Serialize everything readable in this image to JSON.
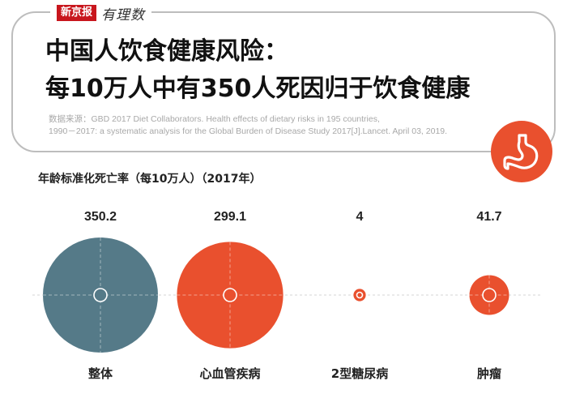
{
  "header": {
    "logo_box": "新京报",
    "logo_script": "有理数",
    "title_line1": "中国人饮食健康风险：",
    "title_line2": "每10万人中有350人死因归于饮食健康",
    "source_line1": "数据来源：GBD 2017 Diet Collaborators. Health effects of dietary risks in 195 countries,",
    "source_line2": "1990－2017: a systematic analysis for the Global Burden of Disease Study 2017[J].Lancet. April 03, 2019."
  },
  "icons": {
    "header_icon": "stomach-icon"
  },
  "colors": {
    "teal": "#557a88",
    "orange": "#e9502e",
    "frame": "#bdbdbd"
  },
  "chart_data": {
    "type": "bubble",
    "subtitle": "年龄标准化死亡率（每10万人）（2017年）",
    "categories": [
      "整体",
      "心血管疾病",
      "2型糖尿病",
      "肿瘤"
    ],
    "values": [
      350.2,
      299.1,
      4,
      41.7
    ],
    "value_labels": [
      "350.2",
      "299.1",
      "4",
      "41.7"
    ],
    "colors": [
      "#557a88",
      "#e9502e",
      "#e9502e",
      "#e9502e"
    ]
  }
}
